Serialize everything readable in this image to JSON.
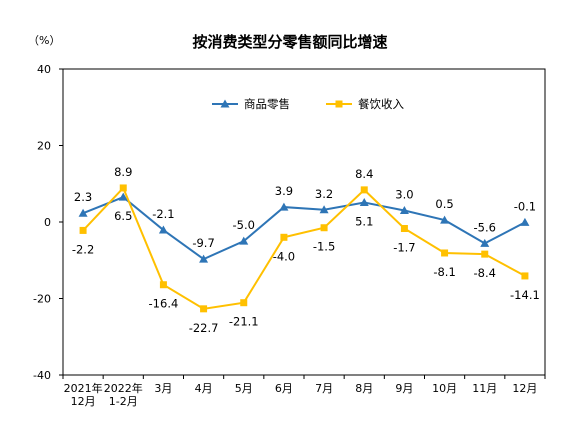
{
  "chart_data": {
    "type": "line",
    "title": "按消费类型分零售额同比增速",
    "ylabel": "（%）",
    "xlabel": "",
    "categories": [
      "2021年\n12月",
      "2022年\n1-2月",
      "3月",
      "4月",
      "5月",
      "6月",
      "7月",
      "8月",
      "9月",
      "10月",
      "11月",
      "12月"
    ],
    "ylim": [
      -40,
      40
    ],
    "yticks": [
      -40,
      -20,
      0,
      20,
      40
    ],
    "grid": false,
    "legend_position": "top-right",
    "series": [
      {
        "name": "商品零售",
        "color": "#2E75B6",
        "marker": "triangle",
        "values": [
          2.3,
          6.5,
          -2.1,
          -9.7,
          -5.0,
          3.9,
          3.2,
          5.1,
          3.0,
          0.5,
          -5.6,
          -0.1
        ],
        "labels": [
          "2.3",
          "6.5",
          "-2.1",
          "-9.7",
          "-5.0",
          "3.9",
          "3.2",
          "5.1",
          "3.0",
          "0.5",
          "-5.6",
          "-0.1"
        ]
      },
      {
        "name": "餐饮收入",
        "color": "#FFC000",
        "marker": "square",
        "values": [
          -2.2,
          8.9,
          -16.4,
          -22.7,
          -21.1,
          -4.0,
          -1.5,
          8.4,
          -1.7,
          -8.1,
          -8.4,
          -14.1
        ],
        "labels": [
          "-2.2",
          "8.9",
          "-16.4",
          "-22.7",
          "-21.1",
          "-4.0",
          "-1.5",
          "8.4",
          "-1.7",
          "-8.1",
          "-8.4",
          "-14.1"
        ]
      }
    ]
  }
}
